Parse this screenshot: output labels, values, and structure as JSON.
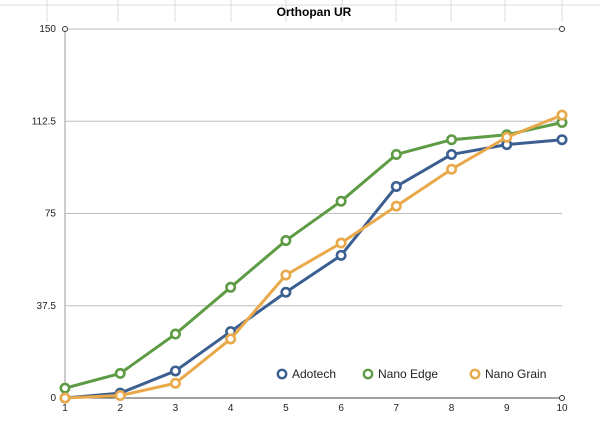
{
  "chart_data": {
    "type": "line",
    "title": "Orthopan UR",
    "xlabel": "",
    "ylabel": "",
    "x": [
      1,
      2,
      3,
      4,
      5,
      6,
      7,
      8,
      9,
      10
    ],
    "x_tick_labels": [
      "1",
      "2",
      "3",
      "4",
      "5",
      "6",
      "7",
      "8",
      "9",
      "10"
    ],
    "ylim": [
      0,
      150
    ],
    "y_ticks": [
      0,
      37.5,
      75,
      112.5,
      150
    ],
    "y_tick_labels": [
      "0",
      "37.5",
      "75",
      "112.5",
      "150"
    ],
    "grid": true,
    "legend_position": "bottom-right",
    "series": [
      {
        "name": "Adotech",
        "color": "#3c5f91",
        "values": [
          0,
          2,
          11,
          27,
          43,
          58,
          86,
          99,
          103,
          105
        ]
      },
      {
        "name": "Nano Edge",
        "color": "#5e9b45",
        "values": [
          4,
          10,
          26,
          45,
          64,
          80,
          99,
          105,
          107,
          112
        ]
      },
      {
        "name": "Nano Grain",
        "color": "#e9a94b",
        "values": [
          0,
          1,
          6,
          24,
          50,
          63,
          78,
          93,
          106,
          115
        ]
      }
    ]
  }
}
